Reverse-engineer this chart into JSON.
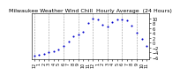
{
  "title": "Milwaukee Weather Wind Chill  Hourly Average  (24 Hours)",
  "x_values": [
    0,
    1,
    2,
    3,
    4,
    5,
    6,
    7,
    8,
    9,
    10,
    11,
    12,
    13,
    14,
    15,
    16,
    17,
    18,
    19,
    20,
    21,
    22,
    23
  ],
  "y_values": [
    -5.5,
    -5.0,
    -4.5,
    -4.0,
    -3.5,
    -3.0,
    -1.5,
    0.5,
    2.5,
    3.5,
    4.5,
    8.0,
    10.0,
    9.5,
    7.5,
    6.5,
    8.5,
    9.5,
    9.5,
    9.0,
    7.0,
    4.0,
    1.5,
    -1.5
  ],
  "dot_color": "#0000cc",
  "grid_color": "#999999",
  "background_color": "#ffffff",
  "ylim": [
    -7,
    12
  ],
  "xlim": [
    -0.5,
    23.5
  ],
  "ytick_values": [
    -6,
    -4,
    -2,
    0,
    2,
    4,
    6,
    8,
    10
  ],
  "xtick_positions": [
    0,
    1,
    2,
    3,
    4,
    5,
    6,
    7,
    8,
    9,
    10,
    11,
    12,
    13,
    14,
    15,
    16,
    17,
    18,
    19,
    20,
    21,
    22,
    23
  ],
  "xtick_labels": [
    "12",
    "1",
    "2",
    "3",
    "4",
    "5",
    "6",
    "7",
    "8",
    "9",
    "10",
    "11",
    "12",
    "1",
    "2",
    "3",
    "4",
    "5",
    "6",
    "7",
    "8",
    "9",
    "10",
    "11"
  ],
  "vgrid_positions": [
    0,
    3,
    6,
    9,
    12,
    15,
    18,
    21
  ],
  "title_fontsize": 4.5,
  "tick_fontsize": 3.5,
  "dot_size": 1.5
}
